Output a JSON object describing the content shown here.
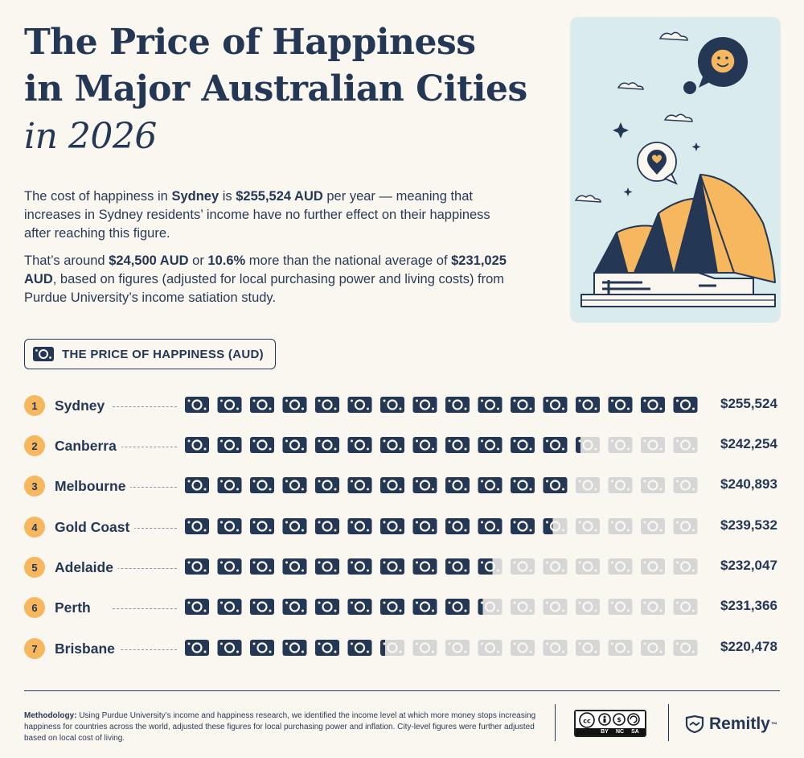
{
  "title": {
    "line1": "The Price of Happiness",
    "line2": "in Major Australian Cities",
    "line3": "in 2026"
  },
  "intro": {
    "p1": [
      {
        "t": "The cost of happiness in ",
        "b": false
      },
      {
        "t": "Sydney",
        "b": true
      },
      {
        "t": " is ",
        "b": false
      },
      {
        "t": "$255,524 AUD",
        "b": true
      },
      {
        "t": " per year — meaning that increases in Sydney residents’ income have no further effect on their happiness after reaching this figure.",
        "b": false
      }
    ],
    "p2": [
      {
        "t": "That’s around ",
        "b": false
      },
      {
        "t": "$24,500 AUD",
        "b": true
      },
      {
        "t": " or ",
        "b": false
      },
      {
        "t": "10.6%",
        "b": true
      },
      {
        "t": " more than the national average of ",
        "b": false
      },
      {
        "t": "$231,025 AUD",
        "b": true
      },
      {
        "t": ", based on figures  (adjusted for local purchasing power and living costs) from Purdue University’s income satiation study.",
        "b": false
      }
    ]
  },
  "legend": {
    "label": "THE PRICE OF HAPPINESS (AUD)",
    "icon": "banknote-icon"
  },
  "colors": {
    "filled": "#243754",
    "empty": "#d6d6d6",
    "accent": "#f6b75e",
    "background": "#faf7f1"
  },
  "chart_data": {
    "type": "bar",
    "title": "THE PRICE OF HAPPINESS (AUD)",
    "categories": [
      "Sydney",
      "Canberra",
      "Melbourne",
      "Gold Coast",
      "Adelaide",
      "Perth",
      "Brisbane"
    ],
    "ranks": [
      "1",
      "2",
      "3",
      "4",
      "5",
      "6",
      "7"
    ],
    "values": [
      255524,
      242254,
      240893,
      239532,
      232047,
      231366,
      220478
    ],
    "value_labels": [
      "$255,524",
      "$242,254",
      "$240,893",
      "$239,532",
      "$232,047",
      "$231,366",
      "$220,478"
    ],
    "unit_icons_filled": [
      16,
      12.2,
      12.0,
      11.4,
      9.6,
      9.2,
      6.2
    ],
    "unit_icons_total": 16
  },
  "footer": {
    "methodology_label": "Methodology:",
    "methodology_text": " Using Purdue University’s income and happiness research, we identified the income level at which more money stops increasing happiness for countries across the world, adjusted these figures for local purchasing power and inflation. City-level figures were further adjusted based on local cost of living.",
    "license": [
      "BY",
      "NC",
      "SA"
    ],
    "brand": "Remitly",
    "brand_tm": "™"
  }
}
